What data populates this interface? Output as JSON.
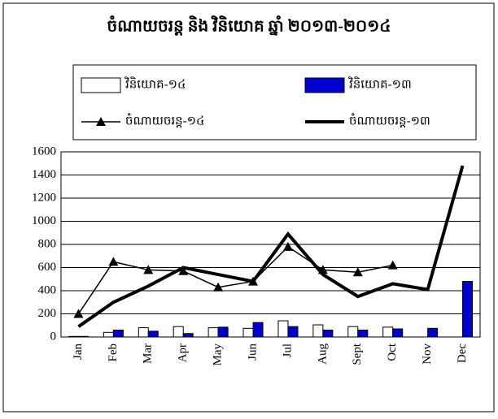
{
  "chart_data": {
    "type": "combo",
    "title": "ចំណាយចរន្ត និង វិនិយោគ ឆ្នាំ ២០១៣-២០១៤",
    "categories": [
      "Jan",
      "Feb",
      "Mar",
      "Apr",
      "May",
      "Jun",
      "Jul",
      "Aug",
      "Sept",
      "Oct",
      "Nov",
      "Dec"
    ],
    "series": [
      {
        "name": "វិនិយោគ-១៤",
        "type": "bar",
        "color": "#ffffff",
        "values": [
          5,
          40,
          80,
          90,
          80,
          75,
          140,
          105,
          90,
          85,
          null,
          null
        ]
      },
      {
        "name": "វិនិយោគ-១៣",
        "type": "bar",
        "color": "#0000cc",
        "values": [
          5,
          60,
          50,
          30,
          85,
          125,
          90,
          60,
          60,
          70,
          75,
          480
        ]
      },
      {
        "name": "ចំណាយចរន្ត-១៤",
        "type": "line",
        "marker": "triangle",
        "color": "#000000",
        "values": [
          200,
          650,
          580,
          570,
          430,
          480,
          780,
          580,
          560,
          620,
          null,
          null
        ]
      },
      {
        "name": "ចំណាយចរន្ត-១៣",
        "type": "line",
        "marker": "none",
        "color": "#000000",
        "values": [
          90,
          300,
          440,
          600,
          540,
          480,
          890,
          540,
          350,
          460,
          410,
          1480
        ]
      }
    ],
    "ylim": [
      0,
      1600
    ],
    "yticks": [
      0,
      200,
      400,
      600,
      800,
      1000,
      1200,
      1400,
      1600
    ],
    "grid": true
  }
}
